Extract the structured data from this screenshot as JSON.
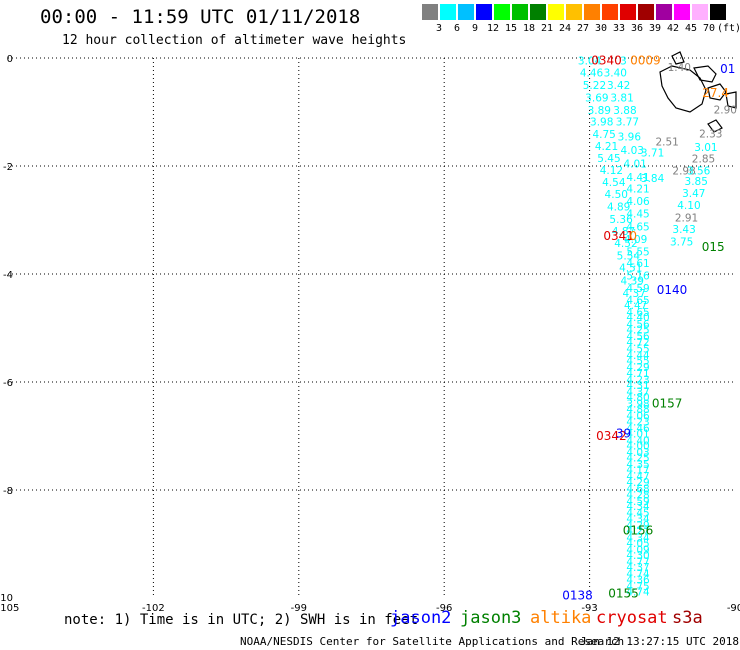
{
  "header": {
    "title": "00:00 - 11:59 UTC 01/11/2018",
    "subtitle": "12 hour collection of altimeter wave heights"
  },
  "legend_scale": {
    "unit": "(ft)",
    "bins": [
      {
        "label": "3",
        "color": "#808080"
      },
      {
        "label": "6",
        "color": "#00ffff"
      },
      {
        "label": "9",
        "color": "#00c0ff"
      },
      {
        "label": "12",
        "color": "#0000ff"
      },
      {
        "label": "15",
        "color": "#00ff00"
      },
      {
        "label": "18",
        "color": "#00c000"
      },
      {
        "label": "21",
        "color": "#008000"
      },
      {
        "label": "24",
        "color": "#ffff00"
      },
      {
        "label": "27",
        "color": "#ffc000"
      },
      {
        "label": "30",
        "color": "#ff8000"
      },
      {
        "label": "33",
        "color": "#ff4000"
      },
      {
        "label": "36",
        "color": "#e00000"
      },
      {
        "label": "39",
        "color": "#a00000"
      },
      {
        "label": "42",
        "color": "#a000a0"
      },
      {
        "label": "45",
        "color": "#ff00ff"
      },
      {
        "label": "70",
        "color": "#ffb0ff"
      },
      {
        "label": "",
        "color": "#000000"
      }
    ]
  },
  "map": {
    "lon_ticks": [
      "-105",
      "-102",
      "-99",
      "-96",
      "-93",
      "-90"
    ],
    "lat_ticks": [
      "0",
      "-2",
      "-4",
      "-6",
      "-8",
      "-10"
    ],
    "lon_range": [
      -105,
      -90
    ],
    "lat_range": [
      -10,
      0
    ],
    "grid": "dotted"
  },
  "chart_data": {
    "type": "scatter",
    "xlim": [
      -105,
      -90
    ],
    "ylim": [
      -10,
      0
    ],
    "points": [
      {
        "x": -93.0,
        "y": -0.05,
        "v": "3.04",
        "c": "#00ffff"
      },
      {
        "x": -92.3,
        "y": -0.05,
        "v": "3",
        "c": "#00ffff"
      },
      {
        "x": -92.96,
        "y": -0.27,
        "v": "4.46",
        "c": "#00ffff"
      },
      {
        "x": -92.47,
        "y": -0.27,
        "v": "3.40",
        "c": "#00ffff"
      },
      {
        "x": -92.9,
        "y": -0.5,
        "v": "5.22",
        "c": "#00ffff"
      },
      {
        "x": -92.4,
        "y": -0.5,
        "v": "3.42",
        "c": "#00ffff"
      },
      {
        "x": -92.85,
        "y": -0.73,
        "v": "3.69",
        "c": "#00ffff"
      },
      {
        "x": -92.33,
        "y": -0.73,
        "v": "3.81",
        "c": "#00ffff"
      },
      {
        "x": -92.27,
        "y": -0.96,
        "v": "3.88",
        "c": "#00ffff"
      },
      {
        "x": -92.8,
        "y": -0.96,
        "v": "3.89",
        "c": "#00ffff"
      },
      {
        "x": -92.75,
        "y": -1.18,
        "v": "3.98",
        "c": "#00ffff"
      },
      {
        "x": -92.22,
        "y": -1.18,
        "v": "3.77",
        "c": "#00ffff"
      },
      {
        "x": -92.7,
        "y": -1.41,
        "v": "4.75",
        "c": "#00ffff"
      },
      {
        "x": -92.18,
        "y": -1.45,
        "v": "3.96",
        "c": "#00ffff"
      },
      {
        "x": -92.65,
        "y": -1.63,
        "v": "4.21",
        "c": "#00ffff"
      },
      {
        "x": -92.12,
        "y": -1.7,
        "v": "4.03",
        "c": "#00ffff"
      },
      {
        "x": -92.6,
        "y": -1.85,
        "v": "5.45",
        "c": "#00ffff"
      },
      {
        "x": -92.06,
        "y": -1.95,
        "v": "4.01",
        "c": "#00ffff"
      },
      {
        "x": -92.55,
        "y": -2.07,
        "v": "4.12",
        "c": "#00ffff"
      },
      {
        "x": -92.0,
        "y": -2.2,
        "v": "4.41",
        "c": "#00ffff"
      },
      {
        "x": -92.5,
        "y": -2.3,
        "v": "4.54",
        "c": "#00ffff"
      },
      {
        "x": -92.0,
        "y": -2.42,
        "v": "4.21",
        "c": "#00ffff"
      },
      {
        "x": -92.45,
        "y": -2.52,
        "v": "4.50",
        "c": "#00ffff"
      },
      {
        "x": -92.0,
        "y": -2.65,
        "v": "4.06",
        "c": "#00ffff"
      },
      {
        "x": -92.4,
        "y": -2.75,
        "v": "4.89",
        "c": "#00ffff"
      },
      {
        "x": -92.0,
        "y": -2.88,
        "v": "4.45",
        "c": "#00ffff"
      },
      {
        "x": -92.35,
        "y": -2.98,
        "v": "5.36",
        "c": "#00ffff"
      },
      {
        "x": -92.0,
        "y": -3.12,
        "v": "4.65",
        "c": "#00ffff"
      },
      {
        "x": -92.3,
        "y": -3.2,
        "v": "4.87",
        "c": "#00ffff"
      },
      {
        "x": -92.05,
        "y": -3.35,
        "v": "4.09",
        "c": "#00ffff"
      },
      {
        "x": -92.25,
        "y": -3.43,
        "v": "4.52",
        "c": "#00ffff"
      },
      {
        "x": -92.0,
        "y": -3.58,
        "v": "5.55",
        "c": "#00ffff"
      },
      {
        "x": -92.2,
        "y": -3.66,
        "v": "5.54",
        "c": "#00ffff"
      },
      {
        "x": -92.0,
        "y": -3.8,
        "v": "4.61",
        "c": "#00ffff"
      },
      {
        "x": -92.15,
        "y": -3.88,
        "v": "4.51",
        "c": "#00ffff"
      },
      {
        "x": -92.0,
        "y": -4.03,
        "v": "5.16",
        "c": "#00ffff"
      },
      {
        "x": -92.12,
        "y": -4.12,
        "v": "4.39",
        "c": "#00ffff"
      },
      {
        "x": -92.0,
        "y": -4.26,
        "v": "4.59",
        "c": "#00ffff"
      },
      {
        "x": -92.08,
        "y": -4.35,
        "v": "4.37",
        "c": "#00ffff"
      },
      {
        "x": -92.0,
        "y": -4.48,
        "v": "4.65",
        "c": "#00ffff"
      },
      {
        "x": -92.05,
        "y": -4.57,
        "v": "4.47",
        "c": "#00ffff"
      },
      {
        "x": -92.0,
        "y": -4.7,
        "v": "4.65",
        "c": "#00ffff"
      },
      {
        "x": -92.0,
        "y": -4.8,
        "v": "4.40",
        "c": "#00ffff"
      },
      {
        "x": -92.0,
        "y": -4.93,
        "v": "4.56",
        "c": "#00ffff"
      },
      {
        "x": -92.0,
        "y": -5.03,
        "v": "4.25",
        "c": "#00ffff"
      },
      {
        "x": -92.0,
        "y": -5.15,
        "v": "4.56",
        "c": "#00ffff"
      },
      {
        "x": -92.0,
        "y": -5.26,
        "v": "4.72",
        "c": "#00ffff"
      },
      {
        "x": -92.0,
        "y": -5.38,
        "v": "4.55",
        "c": "#00ffff"
      },
      {
        "x": -92.0,
        "y": -5.5,
        "v": "4.44",
        "c": "#00ffff"
      },
      {
        "x": -92.0,
        "y": -5.6,
        "v": "4.55",
        "c": "#00ffff"
      },
      {
        "x": -92.0,
        "y": -5.72,
        "v": "4.29",
        "c": "#00ffff"
      },
      {
        "x": -92.0,
        "y": -5.83,
        "v": "4.71",
        "c": "#00ffff"
      },
      {
        "x": -92.0,
        "y": -5.95,
        "v": "4.23",
        "c": "#00ffff"
      },
      {
        "x": -92.0,
        "y": -6.06,
        "v": "4.31",
        "c": "#00ffff"
      },
      {
        "x": -92.0,
        "y": -6.18,
        "v": "4.37",
        "c": "#00ffff"
      },
      {
        "x": -92.0,
        "y": -6.28,
        "v": "4.80",
        "c": "#00ffff"
      },
      {
        "x": -92.0,
        "y": -6.4,
        "v": "3.98",
        "c": "#00ffff"
      },
      {
        "x": -92.0,
        "y": -6.5,
        "v": "4.88",
        "c": "#00ffff"
      },
      {
        "x": -92.0,
        "y": -6.62,
        "v": "4.06",
        "c": "#00ffff"
      },
      {
        "x": -92.0,
        "y": -6.73,
        "v": "4.23",
        "c": "#00ffff"
      },
      {
        "x": -92.0,
        "y": -6.85,
        "v": "4.46",
        "c": "#00ffff"
      },
      {
        "x": -92.0,
        "y": -6.95,
        "v": "4.01",
        "c": "#00ffff"
      },
      {
        "x": -92.0,
        "y": -7.08,
        "v": "4.40",
        "c": "#00ffff"
      },
      {
        "x": -92.0,
        "y": -7.18,
        "v": "4.00",
        "c": "#00ffff"
      },
      {
        "x": -92.0,
        "y": -7.3,
        "v": "4.03",
        "c": "#00ffff"
      },
      {
        "x": -92.0,
        "y": -7.4,
        "v": "4.25",
        "c": "#00ffff"
      },
      {
        "x": -92.0,
        "y": -7.52,
        "v": "4.35",
        "c": "#00ffff"
      },
      {
        "x": -92.0,
        "y": -7.62,
        "v": "4.17",
        "c": "#00ffff"
      },
      {
        "x": -92.0,
        "y": -7.74,
        "v": "4.47",
        "c": "#00ffff"
      },
      {
        "x": -92.0,
        "y": -7.85,
        "v": "4.29",
        "c": "#00ffff"
      },
      {
        "x": -92.0,
        "y": -7.97,
        "v": "4.68",
        "c": "#00ffff"
      },
      {
        "x": -92.0,
        "y": -8.08,
        "v": "4.28",
        "c": "#00ffff"
      },
      {
        "x": -92.0,
        "y": -8.2,
        "v": "4.59",
        "c": "#00ffff"
      },
      {
        "x": -92.0,
        "y": -8.3,
        "v": "4.34",
        "c": "#00ffff"
      },
      {
        "x": -92.0,
        "y": -8.42,
        "v": "4.45",
        "c": "#00ffff"
      },
      {
        "x": -92.0,
        "y": -8.53,
        "v": "4.34",
        "c": "#00ffff"
      },
      {
        "x": -92.0,
        "y": -8.65,
        "v": "4.29",
        "c": "#00ffff"
      },
      {
        "x": -92.0,
        "y": -8.75,
        "v": "4.27",
        "c": "#00ffff"
      },
      {
        "x": -92.0,
        "y": -8.88,
        "v": "4.34",
        "c": "#00ffff"
      },
      {
        "x": -92.0,
        "y": -8.98,
        "v": "4.05",
        "c": "#00ffff"
      },
      {
        "x": -92.0,
        "y": -9.1,
        "v": "4.09",
        "c": "#00ffff"
      },
      {
        "x": -92.0,
        "y": -9.2,
        "v": "4.30",
        "c": "#00ffff"
      },
      {
        "x": -92.0,
        "y": -9.32,
        "v": "4.77",
        "c": "#00ffff"
      },
      {
        "x": -92.0,
        "y": -9.43,
        "v": "4.37",
        "c": "#00ffff"
      },
      {
        "x": -92.0,
        "y": -9.55,
        "v": "4.74",
        "c": "#00ffff"
      },
      {
        "x": -92.0,
        "y": -9.66,
        "v": "4.36",
        "c": "#00ffff"
      },
      {
        "x": -92.0,
        "y": -9.78,
        "v": "4.75",
        "c": "#00ffff"
      },
      {
        "x": -92.0,
        "y": -9.88,
        "v": "4.74",
        "c": "#00ffff"
      }
    ],
    "annotations": [
      {
        "x": -92.65,
        "y": -0.05,
        "text": "0340",
        "c": "#e00000"
      },
      {
        "x": -91.85,
        "y": -0.05,
        "text": "0009",
        "c": "#ff8000"
      },
      {
        "x": -90.15,
        "y": -0.2,
        "text": "01",
        "c": "#0000ff"
      },
      {
        "x": -90.4,
        "y": -0.65,
        "text": "27.4",
        "c": "#ff8000"
      },
      {
        "x": -92.4,
        "y": -3.3,
        "text": "0341",
        "c": "#e00000"
      },
      {
        "x": -92.1,
        "y": -3.3,
        "text": "0",
        "c": "#ff8000"
      },
      {
        "x": -90.45,
        "y": -3.5,
        "text": "015",
        "c": "#008000"
      },
      {
        "x": -91.3,
        "y": -4.3,
        "text": "0140",
        "c": "#0000ff"
      },
      {
        "x": -91.4,
        "y": -6.4,
        "text": "0157",
        "c": "#008000"
      },
      {
        "x": -92.55,
        "y": -7.0,
        "text": "0342",
        "c": "#e00000"
      },
      {
        "x": -92.3,
        "y": -6.95,
        "text": "39",
        "c": "#0000ff"
      },
      {
        "x": -92.0,
        "y": -8.75,
        "text": "0156",
        "c": "#008000"
      },
      {
        "x": -93.25,
        "y": -9.95,
        "text": "0138",
        "c": "#0000ff"
      },
      {
        "x": -92.3,
        "y": -9.92,
        "text": "0155",
        "c": "#008000"
      }
    ],
    "grey_values": [
      {
        "x": -91.15,
        "y": -0.17,
        "v": "1.40",
        "c": "#808080"
      },
      {
        "x": -90.2,
        "y": -0.95,
        "v": "2.90",
        "c": "#808080"
      },
      {
        "x": -90.5,
        "y": -1.4,
        "v": "2.33",
        "c": "#808080"
      },
      {
        "x": -91.4,
        "y": -1.55,
        "v": "2.51",
        "c": "#808080"
      },
      {
        "x": -90.6,
        "y": -1.65,
        "v": "3.01",
        "c": "#00ffff"
      },
      {
        "x": -90.65,
        "y": -1.86,
        "v": "2.85",
        "c": "#808080"
      },
      {
        "x": -91.7,
        "y": -1.75,
        "v": "3.71",
        "c": "#00ffff"
      },
      {
        "x": -91.05,
        "y": -2.08,
        "v": "2.98",
        "c": "#808080"
      },
      {
        "x": -91.7,
        "y": -2.22,
        "v": "3.84",
        "c": "#00ffff"
      },
      {
        "x": -90.75,
        "y": -2.08,
        "v": "3.56",
        "c": "#00ffff"
      },
      {
        "x": -90.8,
        "y": -2.28,
        "v": "3.85",
        "c": "#00ffff"
      },
      {
        "x": -90.85,
        "y": -2.5,
        "v": "3.47",
        "c": "#00ffff"
      },
      {
        "x": -90.95,
        "y": -2.72,
        "v": "4.10",
        "c": "#00ffff"
      },
      {
        "x": -91.0,
        "y": -2.95,
        "v": "2.91",
        "c": "#808080"
      },
      {
        "x": -91.05,
        "y": -3.17,
        "v": "3.43",
        "c": "#00ffff"
      },
      {
        "x": -91.1,
        "y": -3.4,
        "v": "3.75",
        "c": "#00ffff"
      }
    ]
  },
  "note": {
    "text": "note: 1) Time is in UTC; 2) SWH is in feet"
  },
  "satellites": [
    {
      "name": "jason2",
      "color": "#0000ff"
    },
    {
      "name": "jason3",
      "color": "#008000"
    },
    {
      "name": "altika",
      "color": "#ff8000"
    },
    {
      "name": "cryosat",
      "color": "#e00000"
    },
    {
      "name": "s3a",
      "color": "#a00000"
    }
  ],
  "footer": {
    "credit": "NOAA/NESDIS Center for Satellite Applications and Research",
    "generated": "Jan 12 13:27:15 UTC 2018"
  }
}
